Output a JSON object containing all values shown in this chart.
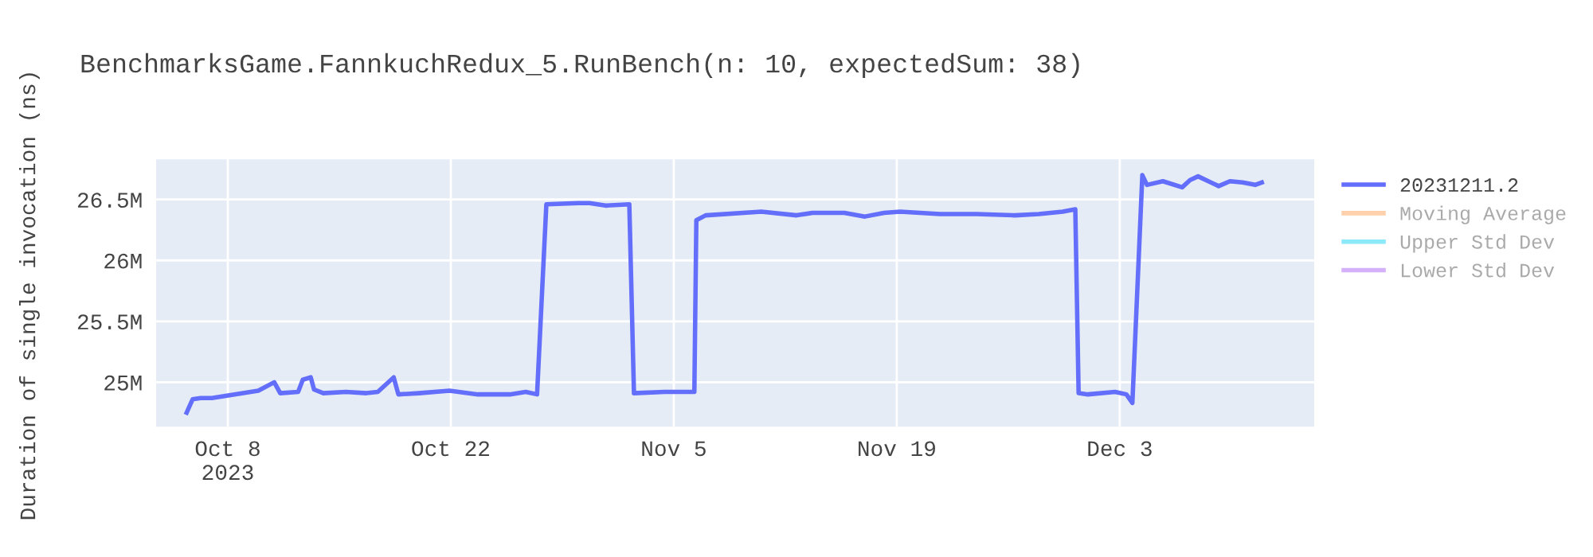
{
  "chart_data": {
    "type": "line",
    "title": "BenchmarksGame.FannkuchRedux_5.RunBench(n: 10, expectedSum: 38)",
    "ylabel": "Duration of single invocation (ns)",
    "x": [
      "2023-10-05T10:00",
      "2023-10-05T19:00",
      "2023-10-06T07:00",
      "2023-10-07T00:00",
      "2023-10-09T22:00",
      "2023-10-10T22:00",
      "2023-10-11T07:00",
      "2023-10-12T10:00",
      "2023-10-12T17:00",
      "2023-10-13T05:00",
      "2023-10-13T10:00",
      "2023-10-14T00:00",
      "2023-10-15T10:00",
      "2023-10-16T17:00",
      "2023-10-17T10:00",
      "2023-10-18T10:00",
      "2023-10-18T17:00",
      "2023-10-20T00:00",
      "2023-10-21T22:00",
      "2023-10-23T17:00",
      "2023-10-25T17:00",
      "2023-10-26T17:00",
      "2023-10-27T10:00",
      "2023-10-28T00:00",
      "2023-10-30T00:00",
      "2023-10-30T17:00",
      "2023-10-31T17:00",
      "2023-11-02T05:00",
      "2023-11-02T12:00",
      "2023-11-04T10:00",
      "2023-11-06T07:00",
      "2023-11-06T10:00",
      "2023-11-07T00:00",
      "2023-11-10T12:00",
      "2023-11-12T17:00",
      "2023-11-13T17:00",
      "2023-11-15T17:00",
      "2023-11-17T00:00",
      "2023-11-18T05:00",
      "2023-11-19T05:00",
      "2023-11-21T17:00",
      "2023-11-24T00:00",
      "2023-11-26T10:00",
      "2023-11-27T22:00",
      "2023-11-29T10:00",
      "2023-11-30T05:00",
      "2023-11-30T10:00",
      "2023-12-01T00:00",
      "2023-12-02T17:00",
      "2023-12-03T10:00",
      "2023-12-03T19:00",
      "2023-12-04T10:00",
      "2023-12-04T17:00",
      "2023-12-05T17:00",
      "2023-12-06T22:00",
      "2023-12-07T10:00",
      "2023-12-07T22:00",
      "2023-12-09T05:00",
      "2023-12-09T22:00",
      "2023-12-10T17:00",
      "2023-12-11T12:00",
      "2023-12-11T22:00"
    ],
    "series": [
      {
        "name": "20231211.2",
        "color": "#636efa",
        "values": [
          24750000,
          24860000,
          24870000,
          24870000,
          24930000,
          25000000,
          24910000,
          24920000,
          25020000,
          25040000,
          24940000,
          24910000,
          24920000,
          24910000,
          24920000,
          25040000,
          24900000,
          24910000,
          24930000,
          24900000,
          24900000,
          24920000,
          24900000,
          26460000,
          26470000,
          26470000,
          26450000,
          26460000,
          24910000,
          24920000,
          24920000,
          26330000,
          26370000,
          26400000,
          26370000,
          26390000,
          26390000,
          26360000,
          26390000,
          26400000,
          26380000,
          26380000,
          26370000,
          26380000,
          26400000,
          26420000,
          24910000,
          24900000,
          24920000,
          24900000,
          24830000,
          26700000,
          26620000,
          26650000,
          26600000,
          26660000,
          26690000,
          26610000,
          26650000,
          26640000,
          26620000,
          26640000
        ]
      },
      {
        "name": "Moving Average",
        "color": "#ffa15a",
        "values": [
          null,
          null,
          null,
          null,
          null,
          null,
          null,
          null,
          null,
          null,
          null,
          null,
          null,
          null,
          null,
          null,
          null,
          null,
          null,
          null,
          null,
          null,
          null,
          null,
          null,
          null,
          null,
          null,
          null,
          null,
          null,
          null,
          null,
          null,
          null,
          null,
          null,
          null,
          null,
          null,
          null,
          null,
          null,
          null,
          null,
          null,
          null,
          null,
          null,
          null,
          null,
          null,
          null,
          null,
          null,
          null,
          null,
          null,
          null,
          null,
          null,
          null
        ]
      },
      {
        "name": "Upper Std Dev",
        "color": "#19d3f3",
        "values": [
          null,
          null,
          null,
          null,
          null,
          null,
          null,
          null,
          null,
          null,
          null,
          null,
          null,
          null,
          null,
          null,
          null,
          null,
          null,
          null,
          null,
          null,
          null,
          null,
          null,
          null,
          null,
          null,
          null,
          null,
          null,
          null,
          null,
          null,
          null,
          null,
          null,
          null,
          null,
          null,
          null,
          null,
          null,
          null,
          null,
          null,
          null,
          null,
          null,
          null,
          null,
          null,
          null,
          null,
          null,
          null,
          null,
          null,
          null,
          null,
          null,
          null
        ]
      },
      {
        "name": "Lower Std Dev",
        "color": "#ab63fa",
        "values": [
          null,
          null,
          null,
          null,
          null,
          null,
          null,
          null,
          null,
          null,
          null,
          null,
          null,
          null,
          null,
          null,
          null,
          null,
          null,
          null,
          null,
          null,
          null,
          null,
          null,
          null,
          null,
          null,
          null,
          null,
          null,
          null,
          null,
          null,
          null,
          null,
          null,
          null,
          null,
          null,
          null,
          null,
          null,
          null,
          null,
          null,
          null,
          null,
          null,
          null,
          null,
          null,
          null,
          null,
          null,
          null,
          null,
          null,
          null,
          null,
          null,
          null
        ]
      }
    ],
    "xlim": [
      "2023-10-03T12:00",
      "2023-12-15T05:00"
    ],
    "xticks": [
      {
        "value": "2023-10-08",
        "label": "Oct 8\n2023"
      },
      {
        "value": "2023-10-22",
        "label": "Oct 22"
      },
      {
        "value": "2023-11-05",
        "label": "Nov 5"
      },
      {
        "value": "2023-11-19",
        "label": "Nov 19"
      },
      {
        "value": "2023-12-03",
        "label": "Dec 3"
      }
    ],
    "ylim": [
      24635000,
      26830000
    ],
    "yticks": [
      {
        "value": 25000000,
        "label": "25M"
      },
      {
        "value": 25500000,
        "label": "25.5M"
      },
      {
        "value": 26000000,
        "label": "26M"
      },
      {
        "value": 26500000,
        "label": "26.5M"
      }
    ],
    "grid": true,
    "legend": "right"
  }
}
